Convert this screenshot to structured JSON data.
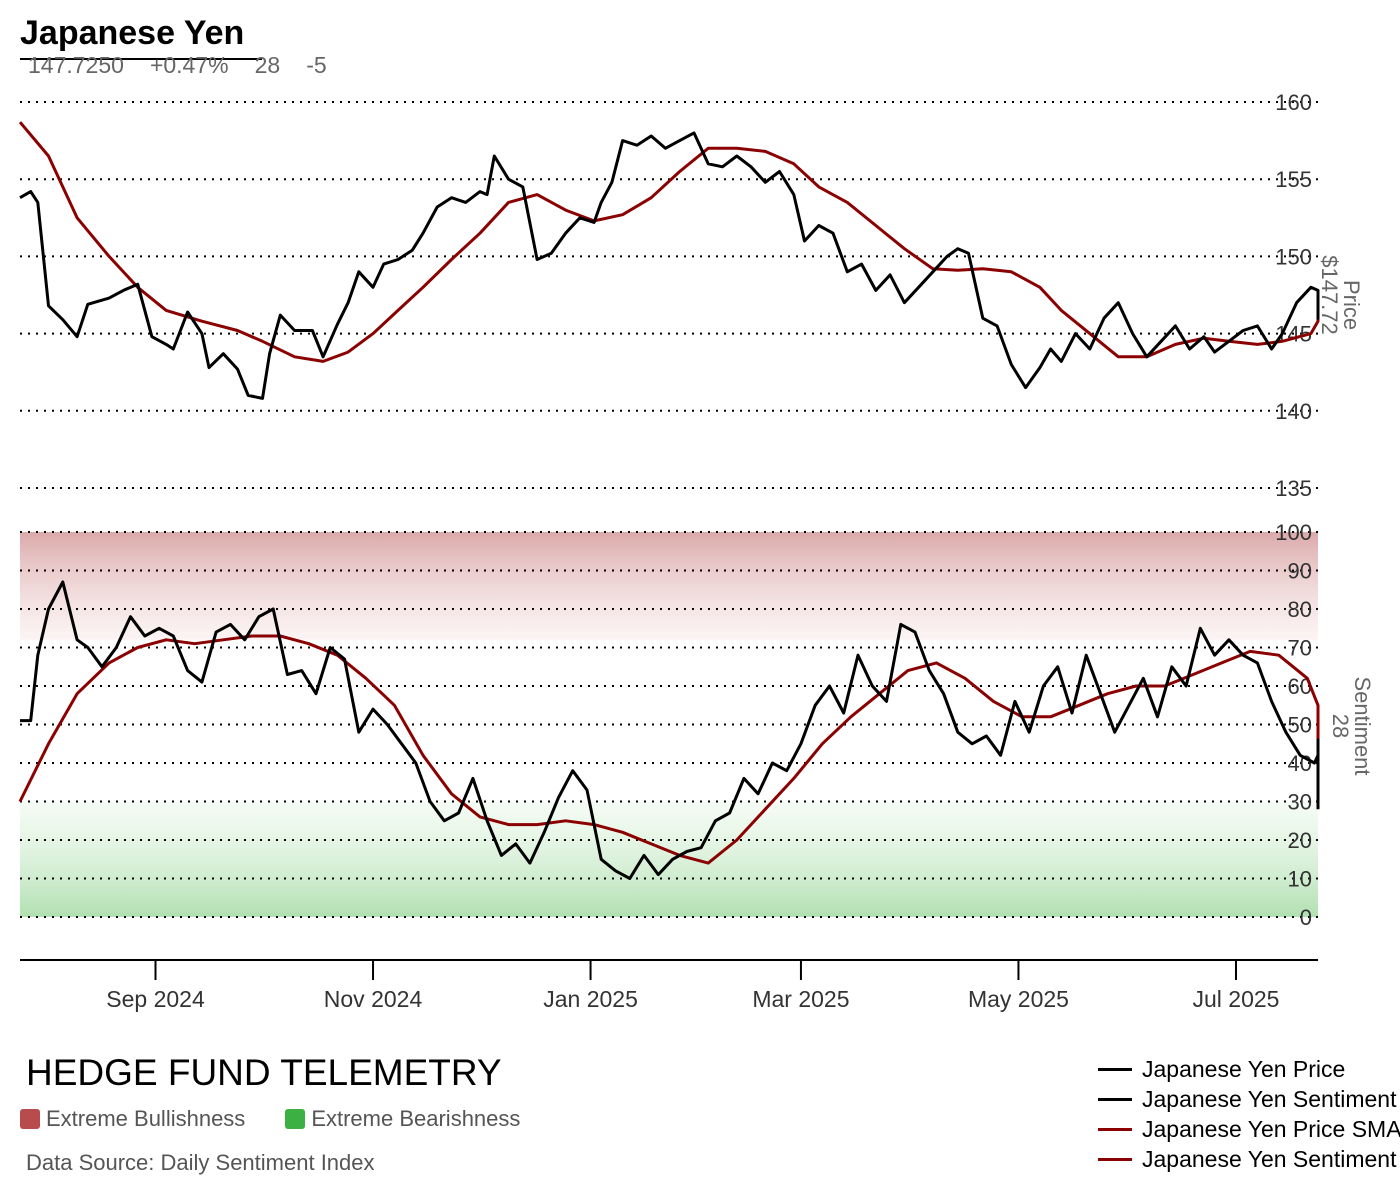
{
  "header": {
    "title": "Japanese Yen",
    "price": "147.7250",
    "change": "+0.47%",
    "sentiment": "28",
    "sentiment_change": "-5"
  },
  "footer": {
    "brand": "HEDGE FUND TELEMETRY",
    "zone_bull": "Extreme Bullishness",
    "zone_bear": "Extreme Bearishness",
    "source": "Data Source: Daily Sentiment Index"
  },
  "colors": {
    "price": "#000000",
    "sma": "#8b0000",
    "bull_zone": "#b84c4c",
    "bear_zone": "#3cb043",
    "grid": "#000000"
  },
  "chart_data": {
    "type": "line",
    "x_tick_labels": [
      "Sep 2024",
      "Nov 2024",
      "Jan 2025",
      "Mar 2025",
      "May 2025",
      "Jul 2025"
    ],
    "x_ticks": [
      "2024-09-01",
      "2024-11-01",
      "2025-01-01",
      "2025-03-01",
      "2025-05-01",
      "2025-07-01"
    ],
    "x_range": [
      "2024-07-25",
      "2025-07-24"
    ],
    "legend": [
      "Japanese Yen Price",
      "Japanese Yen Sentiment",
      "Japanese Yen Price SMA",
      "Japanese Yen Sentiment SMA"
    ],
    "price_panel": {
      "label": "Price",
      "last_label": "$147.72",
      "ylim": [
        135,
        160
      ],
      "yticks": [
        135,
        140,
        145,
        150,
        155,
        160
      ],
      "price": [
        [
          "2024-07-25",
          153.8
        ],
        [
          "2024-07-28",
          154.2
        ],
        [
          "2024-07-30",
          153.5
        ],
        [
          "2024-08-02",
          146.8
        ],
        [
          "2024-08-06",
          145.9
        ],
        [
          "2024-08-10",
          144.8
        ],
        [
          "2024-08-13",
          146.9
        ],
        [
          "2024-08-19",
          147.3
        ],
        [
          "2024-08-23",
          147.8
        ],
        [
          "2024-08-27",
          148.2
        ],
        [
          "2024-08-31",
          144.8
        ],
        [
          "2024-09-04",
          144.3
        ],
        [
          "2024-09-06",
          144.0
        ],
        [
          "2024-09-10",
          146.4
        ],
        [
          "2024-09-14",
          145.0
        ],
        [
          "2024-09-16",
          142.8
        ],
        [
          "2024-09-20",
          143.7
        ],
        [
          "2024-09-24",
          142.7
        ],
        [
          "2024-09-27",
          141.0
        ],
        [
          "2024-10-01",
          140.8
        ],
        [
          "2024-10-03",
          143.7
        ],
        [
          "2024-10-06",
          146.2
        ],
        [
          "2024-10-10",
          145.2
        ],
        [
          "2024-10-15",
          145.2
        ],
        [
          "2024-10-18",
          143.5
        ],
        [
          "2024-10-22",
          145.6
        ],
        [
          "2024-10-25",
          147.0
        ],
        [
          "2024-10-28",
          149.0
        ],
        [
          "2024-11-01",
          148.0
        ],
        [
          "2024-11-04",
          149.5
        ],
        [
          "2024-11-08",
          149.8
        ],
        [
          "2024-11-12",
          150.4
        ],
        [
          "2024-11-15",
          151.5
        ],
        [
          "2024-11-19",
          153.2
        ],
        [
          "2024-11-23",
          153.8
        ],
        [
          "2024-11-27",
          153.5
        ],
        [
          "2024-12-01",
          154.2
        ],
        [
          "2024-12-03",
          154.0
        ],
        [
          "2024-12-05",
          156.5
        ],
        [
          "2024-12-09",
          155.0
        ],
        [
          "2024-12-13",
          154.5
        ],
        [
          "2024-12-17",
          149.8
        ],
        [
          "2024-12-21",
          150.2
        ],
        [
          "2024-12-25",
          151.5
        ],
        [
          "2024-12-29",
          152.5
        ],
        [
          "2025-01-02",
          152.2
        ],
        [
          "2025-01-04",
          153.5
        ],
        [
          "2025-01-07",
          154.8
        ],
        [
          "2025-01-10",
          157.5
        ],
        [
          "2025-01-14",
          157.2
        ],
        [
          "2025-01-18",
          157.8
        ],
        [
          "2025-01-22",
          157.0
        ],
        [
          "2025-01-26",
          157.5
        ],
        [
          "2025-01-30",
          158.0
        ],
        [
          "2025-02-03",
          156.0
        ],
        [
          "2025-02-07",
          155.8
        ],
        [
          "2025-02-11",
          156.5
        ],
        [
          "2025-02-15",
          155.8
        ],
        [
          "2025-02-19",
          154.8
        ],
        [
          "2025-02-23",
          155.5
        ],
        [
          "2025-02-27",
          154.0
        ],
        [
          "2025-03-02",
          151.0
        ],
        [
          "2025-03-06",
          152.0
        ],
        [
          "2025-03-10",
          151.5
        ],
        [
          "2025-03-14",
          149.0
        ],
        [
          "2025-03-18",
          149.5
        ],
        [
          "2025-03-22",
          147.8
        ],
        [
          "2025-03-26",
          148.8
        ],
        [
          "2025-03-30",
          147.0
        ],
        [
          "2025-04-03",
          148.0
        ],
        [
          "2025-04-07",
          149.0
        ],
        [
          "2025-04-11",
          150.0
        ],
        [
          "2025-04-14",
          150.5
        ],
        [
          "2025-04-17",
          150.2
        ],
        [
          "2025-04-21",
          146.0
        ],
        [
          "2025-04-25",
          145.5
        ],
        [
          "2025-04-29",
          143.0
        ],
        [
          "2025-05-03",
          141.5
        ],
        [
          "2025-05-07",
          142.8
        ],
        [
          "2025-05-10",
          144.0
        ],
        [
          "2025-05-13",
          143.2
        ],
        [
          "2025-05-17",
          145.0
        ],
        [
          "2025-05-21",
          144.0
        ],
        [
          "2025-05-25",
          146.0
        ],
        [
          "2025-05-29",
          147.0
        ],
        [
          "2025-06-02",
          145.0
        ],
        [
          "2025-06-06",
          143.5
        ],
        [
          "2025-06-10",
          144.5
        ],
        [
          "2025-06-14",
          145.5
        ],
        [
          "2025-06-18",
          144.0
        ],
        [
          "2025-06-22",
          144.8
        ],
        [
          "2025-06-25",
          143.8
        ],
        [
          "2025-06-29",
          144.5
        ],
        [
          "2025-07-03",
          145.2
        ],
        [
          "2025-07-07",
          145.5
        ],
        [
          "2025-07-11",
          144.0
        ],
        [
          "2025-07-14",
          145.0
        ],
        [
          "2025-07-18",
          147.0
        ],
        [
          "2025-07-22",
          148.0
        ],
        [
          "2025-07-26",
          147.8
        ],
        [
          "2025-07-30",
          146.0
        ],
        [
          "2025-08-02",
          147.7
        ]
      ],
      "sma": [
        [
          "2024-07-25",
          158.7
        ],
        [
          "2024-08-02",
          156.5
        ],
        [
          "2024-08-10",
          152.5
        ],
        [
          "2024-08-19",
          150.0
        ],
        [
          "2024-08-27",
          148.0
        ],
        [
          "2024-09-04",
          146.5
        ],
        [
          "2024-09-14",
          145.8
        ],
        [
          "2024-09-24",
          145.2
        ],
        [
          "2024-10-01",
          144.5
        ],
        [
          "2024-10-10",
          143.5
        ],
        [
          "2024-10-18",
          143.2
        ],
        [
          "2024-10-25",
          143.8
        ],
        [
          "2024-11-01",
          145.0
        ],
        [
          "2024-11-08",
          146.5
        ],
        [
          "2024-11-15",
          148.0
        ],
        [
          "2024-11-23",
          149.8
        ],
        [
          "2024-12-01",
          151.5
        ],
        [
          "2024-12-09",
          153.5
        ],
        [
          "2024-12-17",
          154.0
        ],
        [
          "2024-12-25",
          153.0
        ],
        [
          "2025-01-02",
          152.3
        ],
        [
          "2025-01-10",
          152.7
        ],
        [
          "2025-01-18",
          153.8
        ],
        [
          "2025-01-26",
          155.5
        ],
        [
          "2025-02-03",
          157.0
        ],
        [
          "2025-02-11",
          157.0
        ],
        [
          "2025-02-19",
          156.8
        ],
        [
          "2025-02-27",
          156.0
        ],
        [
          "2025-03-06",
          154.5
        ],
        [
          "2025-03-14",
          153.5
        ],
        [
          "2025-03-22",
          152.0
        ],
        [
          "2025-03-30",
          150.5
        ],
        [
          "2025-04-07",
          149.2
        ],
        [
          "2025-04-14",
          149.1
        ],
        [
          "2025-04-21",
          149.2
        ],
        [
          "2025-04-29",
          149.0
        ],
        [
          "2025-05-07",
          148.0
        ],
        [
          "2025-05-13",
          146.5
        ],
        [
          "2025-05-21",
          145.0
        ],
        [
          "2025-05-29",
          143.5
        ],
        [
          "2025-06-06",
          143.5
        ],
        [
          "2025-06-14",
          144.3
        ],
        [
          "2025-06-22",
          144.7
        ],
        [
          "2025-06-29",
          144.5
        ],
        [
          "2025-07-07",
          144.3
        ],
        [
          "2025-07-14",
          144.5
        ],
        [
          "2025-07-22",
          145.0
        ],
        [
          "2025-07-30",
          145.8
        ],
        [
          "2025-08-02",
          146.3
        ]
      ]
    },
    "sentiment_panel": {
      "label": "Sentiment",
      "last_label": "28",
      "ylim": [
        0,
        100
      ],
      "yticks": [
        0,
        10,
        20,
        30,
        40,
        50,
        60,
        70,
        80,
        90,
        100
      ],
      "extreme_bull_range": [
        72,
        100
      ],
      "extreme_bear_range": [
        0,
        30
      ],
      "sentiment": [
        [
          "2024-07-25",
          51
        ],
        [
          "2024-07-28",
          51
        ],
        [
          "2024-07-30",
          68
        ],
        [
          "2024-08-02",
          80
        ],
        [
          "2024-08-06",
          87
        ],
        [
          "2024-08-10",
          72
        ],
        [
          "2024-08-13",
          70
        ],
        [
          "2024-08-17",
          65
        ],
        [
          "2024-08-21",
          70
        ],
        [
          "2024-08-25",
          78
        ],
        [
          "2024-08-29",
          73
        ],
        [
          "2024-09-02",
          75
        ],
        [
          "2024-09-06",
          73
        ],
        [
          "2024-09-10",
          64
        ],
        [
          "2024-09-14",
          61
        ],
        [
          "2024-09-18",
          74
        ],
        [
          "2024-09-22",
          76
        ],
        [
          "2024-09-26",
          72
        ],
        [
          "2024-09-30",
          78
        ],
        [
          "2024-10-04",
          80
        ],
        [
          "2024-10-08",
          63
        ],
        [
          "2024-10-12",
          64
        ],
        [
          "2024-10-16",
          58
        ],
        [
          "2024-10-20",
          70
        ],
        [
          "2024-10-24",
          67
        ],
        [
          "2024-10-28",
          48
        ],
        [
          "2024-11-01",
          54
        ],
        [
          "2024-11-05",
          50
        ],
        [
          "2024-11-09",
          45
        ],
        [
          "2024-11-13",
          40
        ],
        [
          "2024-11-17",
          30
        ],
        [
          "2024-11-21",
          25
        ],
        [
          "2024-11-25",
          27
        ],
        [
          "2024-11-29",
          36
        ],
        [
          "2024-12-03",
          25
        ],
        [
          "2024-12-07",
          16
        ],
        [
          "2024-12-11",
          19
        ],
        [
          "2024-12-15",
          14
        ],
        [
          "2024-12-19",
          22
        ],
        [
          "2024-12-23",
          31
        ],
        [
          "2024-12-27",
          38
        ],
        [
          "2024-12-31",
          33
        ],
        [
          "2025-01-04",
          15
        ],
        [
          "2025-01-08",
          12
        ],
        [
          "2025-01-12",
          10
        ],
        [
          "2025-01-16",
          16
        ],
        [
          "2025-01-20",
          11
        ],
        [
          "2025-01-24",
          15
        ],
        [
          "2025-01-28",
          17
        ],
        [
          "2025-02-01",
          18
        ],
        [
          "2025-02-05",
          25
        ],
        [
          "2025-02-09",
          27
        ],
        [
          "2025-02-13",
          36
        ],
        [
          "2025-02-17",
          32
        ],
        [
          "2025-02-21",
          40
        ],
        [
          "2025-02-25",
          38
        ],
        [
          "2025-03-01",
          45
        ],
        [
          "2025-03-05",
          55
        ],
        [
          "2025-03-09",
          60
        ],
        [
          "2025-03-13",
          53
        ],
        [
          "2025-03-17",
          68
        ],
        [
          "2025-03-21",
          60
        ],
        [
          "2025-03-25",
          56
        ],
        [
          "2025-03-29",
          76
        ],
        [
          "2025-04-02",
          74
        ],
        [
          "2025-04-06",
          64
        ],
        [
          "2025-04-10",
          58
        ],
        [
          "2025-04-14",
          48
        ],
        [
          "2025-04-18",
          45
        ],
        [
          "2025-04-22",
          47
        ],
        [
          "2025-04-26",
          42
        ],
        [
          "2025-04-30",
          56
        ],
        [
          "2025-05-04",
          48
        ],
        [
          "2025-05-08",
          60
        ],
        [
          "2025-05-12",
          65
        ],
        [
          "2025-05-16",
          53
        ],
        [
          "2025-05-20",
          68
        ],
        [
          "2025-05-24",
          58
        ],
        [
          "2025-05-28",
          48
        ],
        [
          "2025-06-01",
          55
        ],
        [
          "2025-06-05",
          62
        ],
        [
          "2025-06-09",
          52
        ],
        [
          "2025-06-13",
          65
        ],
        [
          "2025-06-17",
          60
        ],
        [
          "2025-06-21",
          75
        ],
        [
          "2025-06-25",
          68
        ],
        [
          "2025-06-29",
          72
        ],
        [
          "2025-07-03",
          68
        ],
        [
          "2025-07-07",
          66
        ],
        [
          "2025-07-11",
          56
        ],
        [
          "2025-07-15",
          48
        ],
        [
          "2025-07-19",
          42
        ],
        [
          "2025-07-23",
          40
        ],
        [
          "2025-07-27",
          42
        ],
        [
          "2025-07-31",
          46
        ],
        [
          "2025-08-04",
          40
        ],
        [
          "2025-08-08",
          33
        ],
        [
          "2025-08-12",
          31
        ],
        [
          "2025-08-16",
          36
        ],
        [
          "2025-08-20",
          38
        ],
        [
          "2025-08-24",
          28
        ]
      ],
      "sma": [
        [
          "2024-07-25",
          30
        ],
        [
          "2024-08-02",
          45
        ],
        [
          "2024-08-10",
          58
        ],
        [
          "2024-08-19",
          66
        ],
        [
          "2024-08-27",
          70
        ],
        [
          "2024-09-04",
          72
        ],
        [
          "2024-09-12",
          71
        ],
        [
          "2024-09-20",
          72
        ],
        [
          "2024-09-28",
          73
        ],
        [
          "2024-10-06",
          73
        ],
        [
          "2024-10-14",
          71
        ],
        [
          "2024-10-22",
          68
        ],
        [
          "2024-10-30",
          62
        ],
        [
          "2024-11-07",
          55
        ],
        [
          "2024-11-15",
          42
        ],
        [
          "2024-11-23",
          32
        ],
        [
          "2024-12-01",
          26
        ],
        [
          "2024-12-09",
          24
        ],
        [
          "2024-12-17",
          24
        ],
        [
          "2024-12-25",
          25
        ],
        [
          "2025-01-02",
          24
        ],
        [
          "2025-01-10",
          22
        ],
        [
          "2025-01-18",
          19
        ],
        [
          "2025-01-26",
          16
        ],
        [
          "2025-02-03",
          14
        ],
        [
          "2025-02-11",
          20
        ],
        [
          "2025-02-19",
          28
        ],
        [
          "2025-02-27",
          36
        ],
        [
          "2025-03-07",
          45
        ],
        [
          "2025-03-15",
          52
        ],
        [
          "2025-03-23",
          58
        ],
        [
          "2025-03-31",
          64
        ],
        [
          "2025-04-08",
          66
        ],
        [
          "2025-04-16",
          62
        ],
        [
          "2025-04-24",
          56
        ],
        [
          "2025-05-02",
          52
        ],
        [
          "2025-05-10",
          52
        ],
        [
          "2025-05-18",
          55
        ],
        [
          "2025-05-26",
          58
        ],
        [
          "2025-06-03",
          60
        ],
        [
          "2025-06-11",
          60
        ],
        [
          "2025-06-19",
          63
        ],
        [
          "2025-06-27",
          66
        ],
        [
          "2025-07-05",
          69
        ],
        [
          "2025-07-13",
          68
        ],
        [
          "2025-07-21",
          62
        ],
        [
          "2025-07-29",
          55
        ],
        [
          "2025-08-06",
          47
        ],
        [
          "2025-08-14",
          41
        ],
        [
          "2025-08-24",
          38
        ]
      ]
    }
  }
}
